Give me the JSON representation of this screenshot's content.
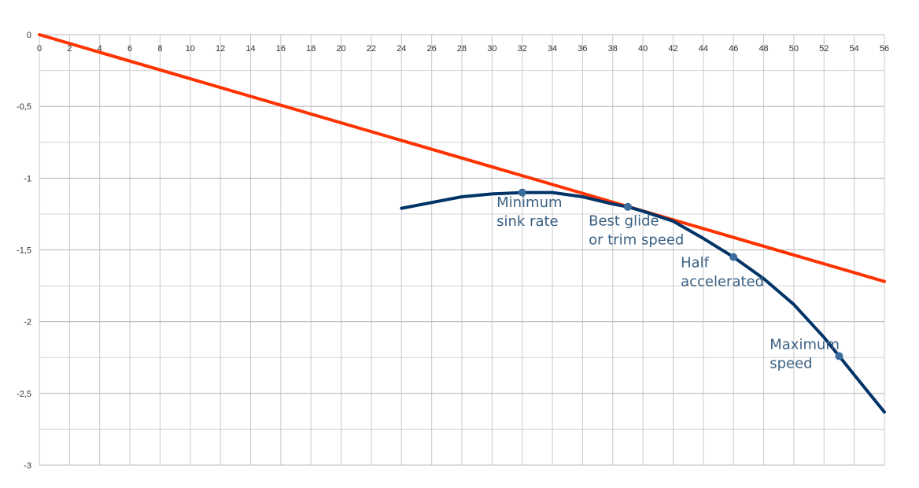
{
  "chart_data": {
    "type": "line",
    "title": "",
    "xlabel": "",
    "ylabel": "",
    "xlim": [
      0,
      56
    ],
    "ylim": [
      -3,
      0
    ],
    "x_major_step": 2,
    "x_minor_step": 2,
    "y_major_step": 0.5,
    "y_minor_step": 0.25,
    "x_ticks": [
      "0",
      "2",
      "4",
      "6",
      "8",
      "10",
      "12",
      "14",
      "16",
      "18",
      "20",
      "22",
      "24",
      "26",
      "28",
      "30",
      "32",
      "34",
      "36",
      "38",
      "40",
      "42",
      "44",
      "46",
      "48",
      "50",
      "52",
      "54",
      "56"
    ],
    "y_ticks": [
      "0",
      "-0,5",
      "-1",
      "-1,5",
      "-2",
      "-2,5",
      "-3"
    ],
    "grid": true,
    "legend": "none",
    "series": [
      {
        "color": "#ff3300",
        "points": [
          [
            0,
            0
          ],
          [
            56,
            -1.72
          ]
        ]
      },
      {
        "color": "#003366",
        "points": [
          [
            24,
            -1.21
          ],
          [
            26,
            -1.17
          ],
          [
            28,
            -1.13
          ],
          [
            30,
            -1.11
          ],
          [
            32,
            -1.1
          ],
          [
            34,
            -1.1
          ],
          [
            36,
            -1.13
          ],
          [
            38,
            -1.18
          ],
          [
            39,
            -1.2
          ],
          [
            40,
            -1.23
          ],
          [
            42,
            -1.3
          ],
          [
            44,
            -1.42
          ],
          [
            46,
            -1.55
          ],
          [
            48,
            -1.7
          ],
          [
            50,
            -1.88
          ],
          [
            52,
            -2.11
          ],
          [
            53,
            -2.24
          ],
          [
            54,
            -2.37
          ],
          [
            56,
            -2.63
          ]
        ],
        "markers": [
          [
            32,
            -1.1
          ],
          [
            39,
            -1.2
          ],
          [
            46,
            -1.55
          ],
          [
            53,
            -2.24
          ]
        ]
      }
    ],
    "annotations": [
      {
        "lines": [
          "Minimum",
          "sink rate"
        ],
        "x": 30.3,
        "y": -1.2
      },
      {
        "lines": [
          "Best glide",
          "or trim speed"
        ],
        "x": 36.4,
        "y": -1.33
      },
      {
        "lines": [
          "Half",
          "accelerated"
        ],
        "x": 42.5,
        "y": -1.62
      },
      {
        "lines": [
          "Maximum",
          "speed"
        ],
        "x": 48.4,
        "y": -2.19
      }
    ]
  }
}
